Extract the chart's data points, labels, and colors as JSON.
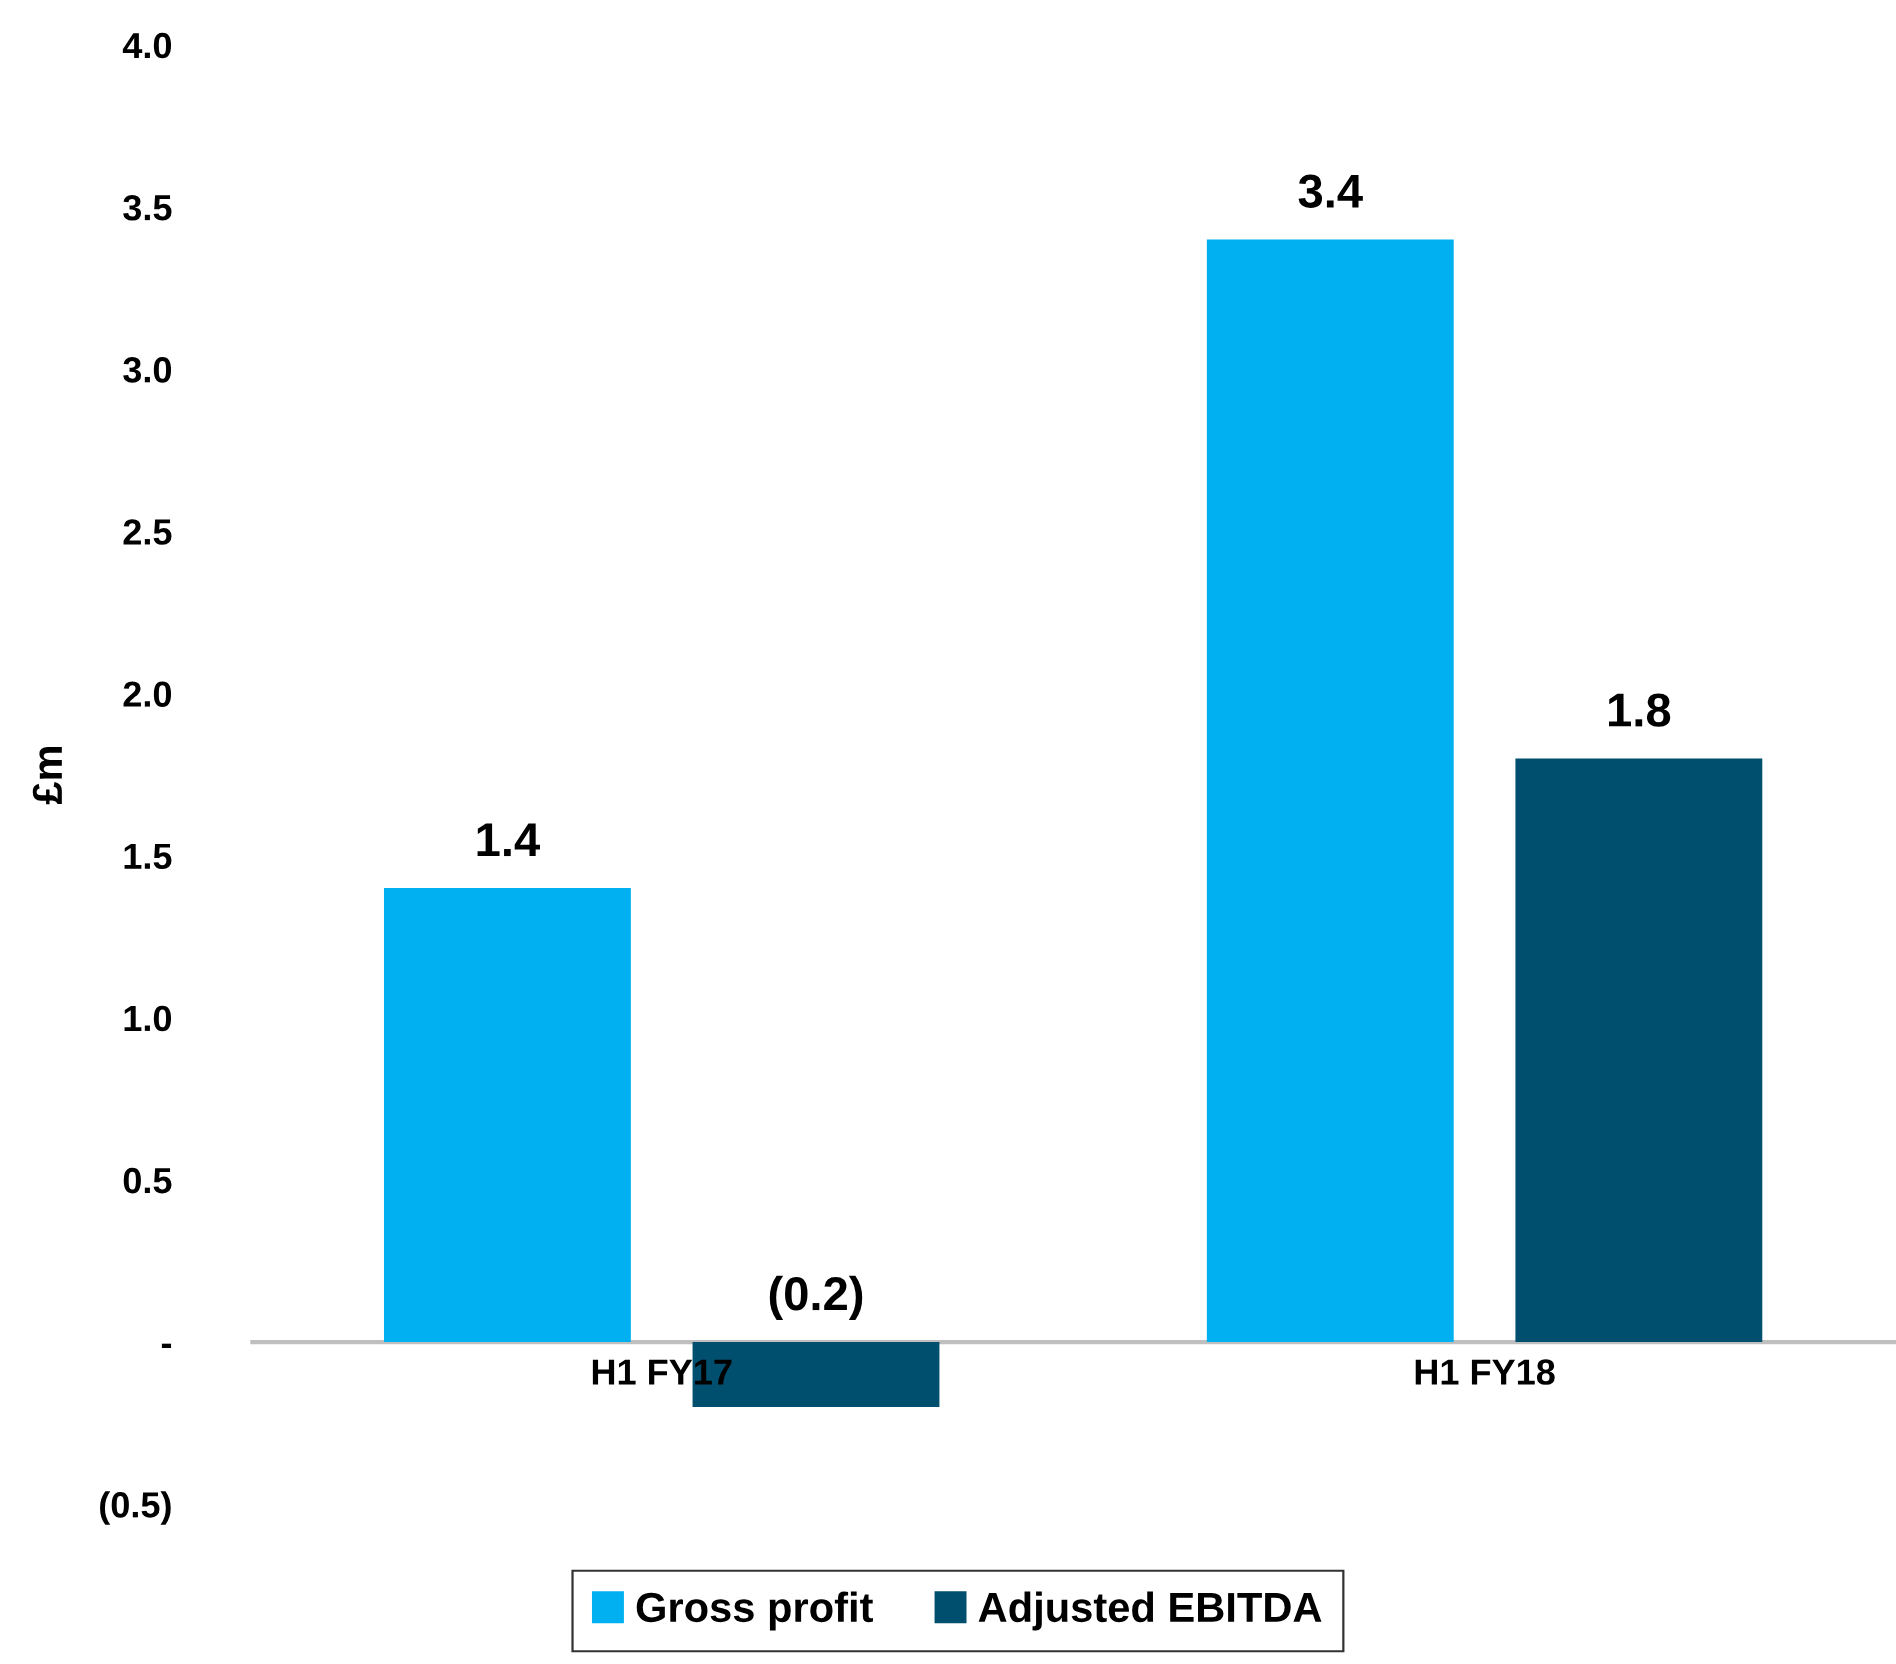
{
  "chart_data": {
    "type": "bar",
    "ylabel": "£m",
    "categories": [
      "H1 FY17",
      "H1 FY18"
    ],
    "series": [
      {
        "name": "Gross profit",
        "color": "#00b0f0",
        "values": [
          1.4,
          3.4
        ],
        "value_labels": [
          "1.4",
          "3.4"
        ]
      },
      {
        "name": "Adjusted EBITDA",
        "color": "#004f6e",
        "values": [
          -0.2,
          1.8
        ],
        "value_labels": [
          "(0.2)",
          "1.8"
        ]
      }
    ],
    "ylim": [
      -0.5,
      4.0
    ],
    "yticks": [
      {
        "value": -0.5,
        "label": "(0.5)"
      },
      {
        "value": 0,
        "label": "-"
      },
      0.5,
      {
        "value": 1.0,
        "label": "1.0"
      },
      1.5,
      {
        "value": 2.0,
        "label": "2.0"
      },
      2.5,
      {
        "value": 3.0,
        "label": "3.0"
      },
      3.5,
      {
        "value": 4.0,
        "label": "4.0"
      }
    ],
    "grid": false,
    "legend": "bottom"
  }
}
